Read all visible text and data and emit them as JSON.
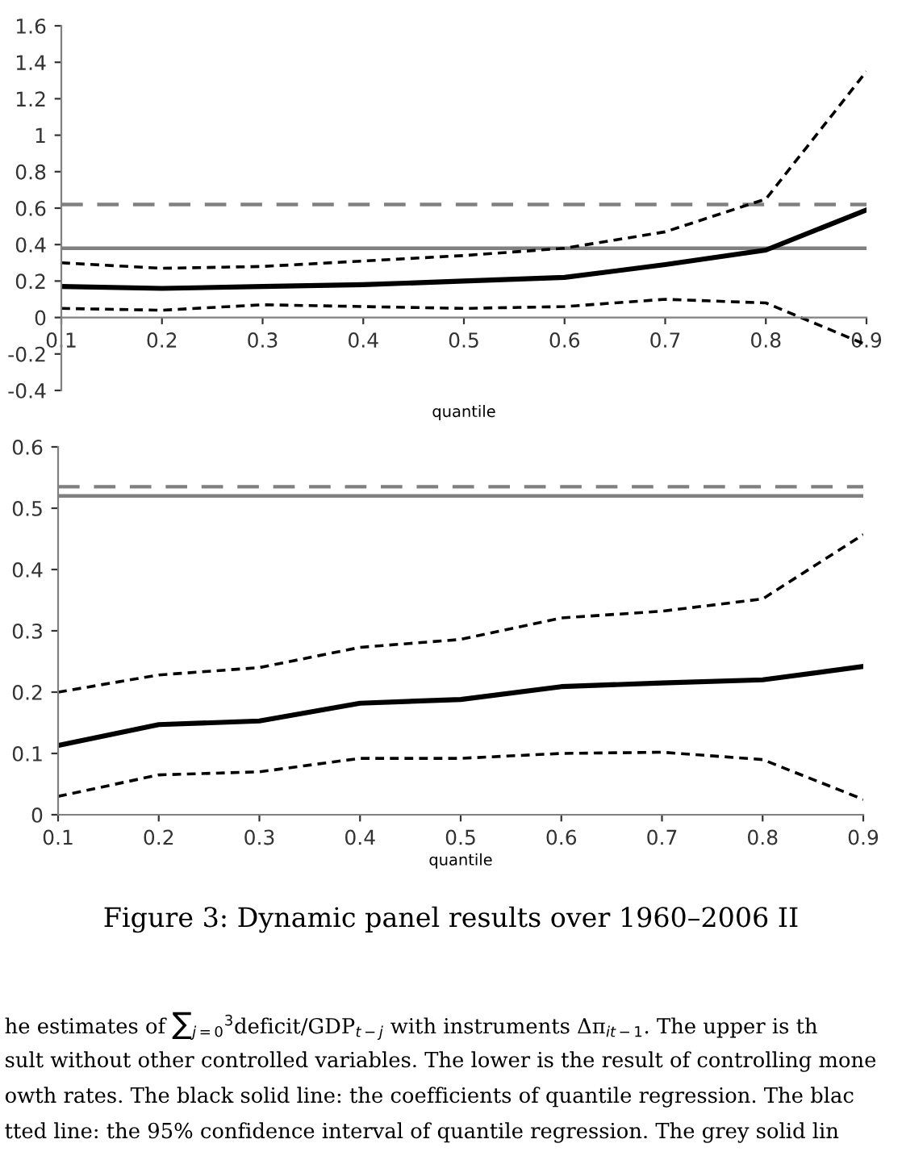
{
  "chart_data": [
    {
      "type": "line",
      "xlabel": "quantile",
      "x": [
        0.1,
        0.2,
        0.3,
        0.4,
        0.5,
        0.6,
        0.7,
        0.8,
        0.9
      ],
      "xlim": [
        0.1,
        0.9
      ],
      "xticks": [
        0.1,
        0.2,
        0.3,
        0.4,
        0.5,
        0.6,
        0.7,
        0.8,
        0.9
      ],
      "ylim": [
        -0.4,
        1.6
      ],
      "yticks": [
        -0.4,
        -0.2,
        0,
        0.2,
        0.4,
        0.6,
        0.8,
        1,
        1.2,
        1.4,
        1.6
      ],
      "grid": false,
      "legend": false,
      "marker": "none",
      "series": [
        {
          "color": "#000000",
          "line_style": "solid",
          "values": [
            0.17,
            0.16,
            0.17,
            0.18,
            0.2,
            0.22,
            0.29,
            0.37,
            0.59
          ]
        },
        {
          "color": "#000000",
          "line_style": "dashed",
          "values": [
            0.3,
            0.27,
            0.28,
            0.31,
            0.34,
            0.38,
            0.47,
            0.65,
            1.35
          ]
        },
        {
          "color": "#000000",
          "line_style": "dashed",
          "values": [
            0.05,
            0.04,
            0.07,
            0.06,
            0.05,
            0.06,
            0.1,
            0.08,
            -0.15
          ]
        }
      ],
      "ref_lines": [
        {
          "axis": "y",
          "value": 0.38,
          "color": "#808080",
          "line_style": "solid"
        },
        {
          "axis": "y",
          "value": 0.62,
          "color": "#808080",
          "line_style": "dashed"
        }
      ]
    },
    {
      "type": "line",
      "xlabel": "quantile",
      "x": [
        0.1,
        0.2,
        0.3,
        0.4,
        0.5,
        0.6,
        0.7,
        0.8,
        0.9
      ],
      "xlim": [
        0.1,
        0.9
      ],
      "xticks": [
        0.1,
        0.2,
        0.3,
        0.4,
        0.5,
        0.6,
        0.7,
        0.8,
        0.9
      ],
      "ylim": [
        0,
        0.6
      ],
      "yticks": [
        0,
        0.1,
        0.2,
        0.3,
        0.4,
        0.5,
        0.6
      ],
      "grid": false,
      "legend": false,
      "marker": "none",
      "series": [
        {
          "color": "#000000",
          "line_style": "solid",
          "values": [
            0.113,
            0.147,
            0.153,
            0.182,
            0.188,
            0.209,
            0.215,
            0.22,
            0.242
          ]
        },
        {
          "color": "#000000",
          "line_style": "dashed",
          "values": [
            0.2,
            0.228,
            0.24,
            0.273,
            0.286,
            0.321,
            0.332,
            0.352,
            0.457
          ]
        },
        {
          "color": "#000000",
          "line_style": "dashed",
          "values": [
            0.03,
            0.065,
            0.07,
            0.092,
            0.092,
            0.1,
            0.102,
            0.09,
            0.025
          ]
        }
      ],
      "ref_lines": [
        {
          "axis": "y",
          "value": 0.52,
          "color": "#808080",
          "line_style": "solid"
        },
        {
          "axis": "y",
          "value": 0.535,
          "color": "#808080",
          "line_style": "dashed"
        }
      ],
      "annotations": [
        "Figure 3: Dynamic panel results over 1960–2006 II",
        "he estimates of ∑$_{j=0}$$^{3}$deficit/GDP$_{t−j}$ with instruments Δπ$_{it−1}$. The upper is th",
        "sult without other controlled variables. The lower is the result of controlling mone",
        "owth rates. The black solid line: the coefficients of quantile regression. The blac",
        "tted line: the 95% confidence interval of quantile regression. The grey solid lin"
      ]
    }
  ]
}
